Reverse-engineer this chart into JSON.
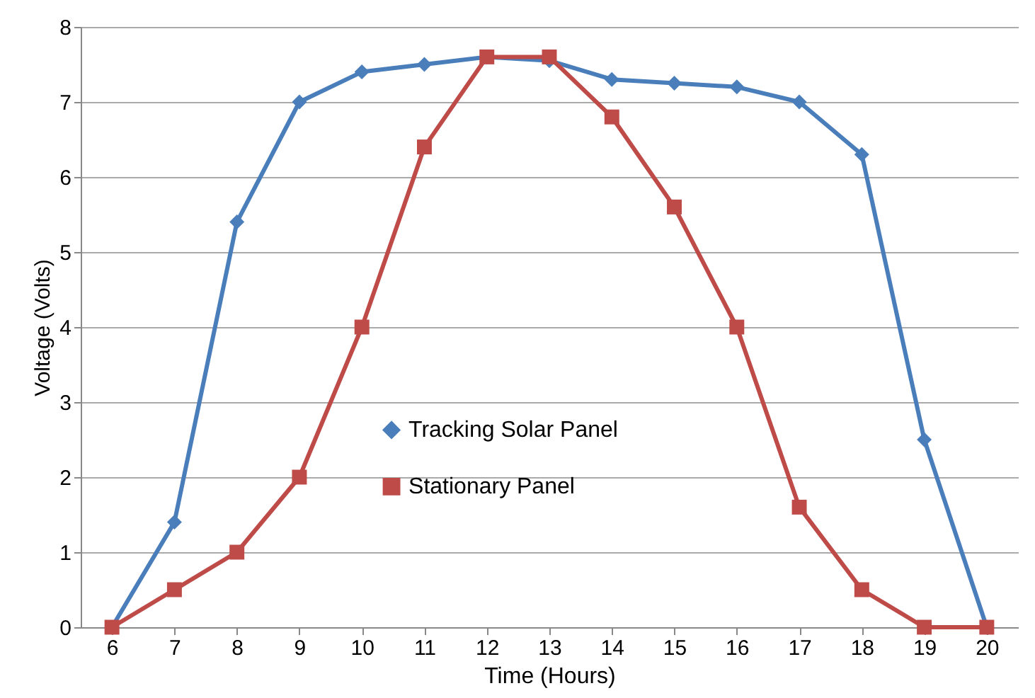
{
  "chart_data": {
    "type": "line",
    "xlabel": "Time (Hours)",
    "ylabel": "Voltage (Volts)",
    "categories": [
      "6",
      "7",
      "8",
      "9",
      "10",
      "11",
      "12",
      "13",
      "14",
      "15",
      "16",
      "17",
      "18",
      "19",
      "20"
    ],
    "series": [
      {
        "name": "Tracking Solar Panel",
        "color": "#4a7ebb",
        "marker": "diamond",
        "values": [
          0,
          1.4,
          5.4,
          7.0,
          7.4,
          7.5,
          7.6,
          7.55,
          7.3,
          7.25,
          7.2,
          7.0,
          6.3,
          2.5,
          0
        ]
      },
      {
        "name": "Stationary Panel",
        "color": "#be4b48",
        "marker": "square",
        "values": [
          0,
          0.5,
          1,
          2,
          4,
          6.4,
          7.6,
          7.6,
          6.8,
          5.6,
          4,
          1.6,
          0.5,
          0,
          0
        ]
      }
    ],
    "ylim": [
      0,
      8
    ],
    "yticks": [
      0,
      1,
      2,
      3,
      4,
      5,
      6,
      7,
      8
    ],
    "grid": "y",
    "legend": "center",
    "line_style": "solid"
  }
}
